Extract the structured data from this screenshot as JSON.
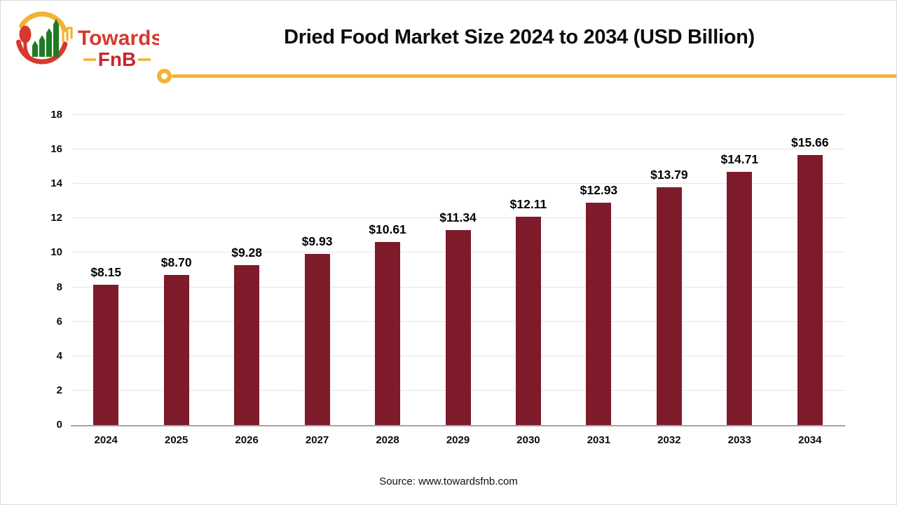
{
  "logo": {
    "icon": "towardsfnb-logo-icon",
    "brand_line1": "Towards",
    "brand_line2": "FnB"
  },
  "header": {
    "title": "Dried Food Market Size 2024 to 2034 (USD Billion)"
  },
  "chart_data": {
    "type": "bar",
    "title": "Dried Food Market Size 2024 to 2034 (USD Billion)",
    "categories": [
      "2024",
      "2025",
      "2026",
      "2027",
      "2028",
      "2029",
      "2030",
      "2031",
      "2032",
      "2033",
      "2034"
    ],
    "values": [
      8.15,
      8.7,
      9.28,
      9.93,
      10.61,
      11.34,
      12.11,
      12.93,
      13.79,
      14.71,
      15.66
    ],
    "value_labels": [
      "$8.15",
      "$8.70",
      "$9.28",
      "$9.93",
      "$10.61",
      "$11.34",
      "$12.11",
      "$12.93",
      "$13.79",
      "$14.71",
      "$15.66"
    ],
    "xlabel": "",
    "ylabel": "",
    "ylim": [
      0,
      18
    ],
    "ytick_step": 2,
    "grid": true,
    "legend": "none",
    "bar_color": "#7D1B2B"
  },
  "footer": {
    "source": "Source: www.towardsfnb.com"
  },
  "colors": {
    "accent_gold": "#F5B332",
    "bar_maroon": "#7D1B2B",
    "logo_red": "#D6392E",
    "logo_dark_red": "#C5262C",
    "logo_green": "#1E7B22",
    "axis_line": "#A6A6A6",
    "gridline": "#E6E6E6"
  }
}
